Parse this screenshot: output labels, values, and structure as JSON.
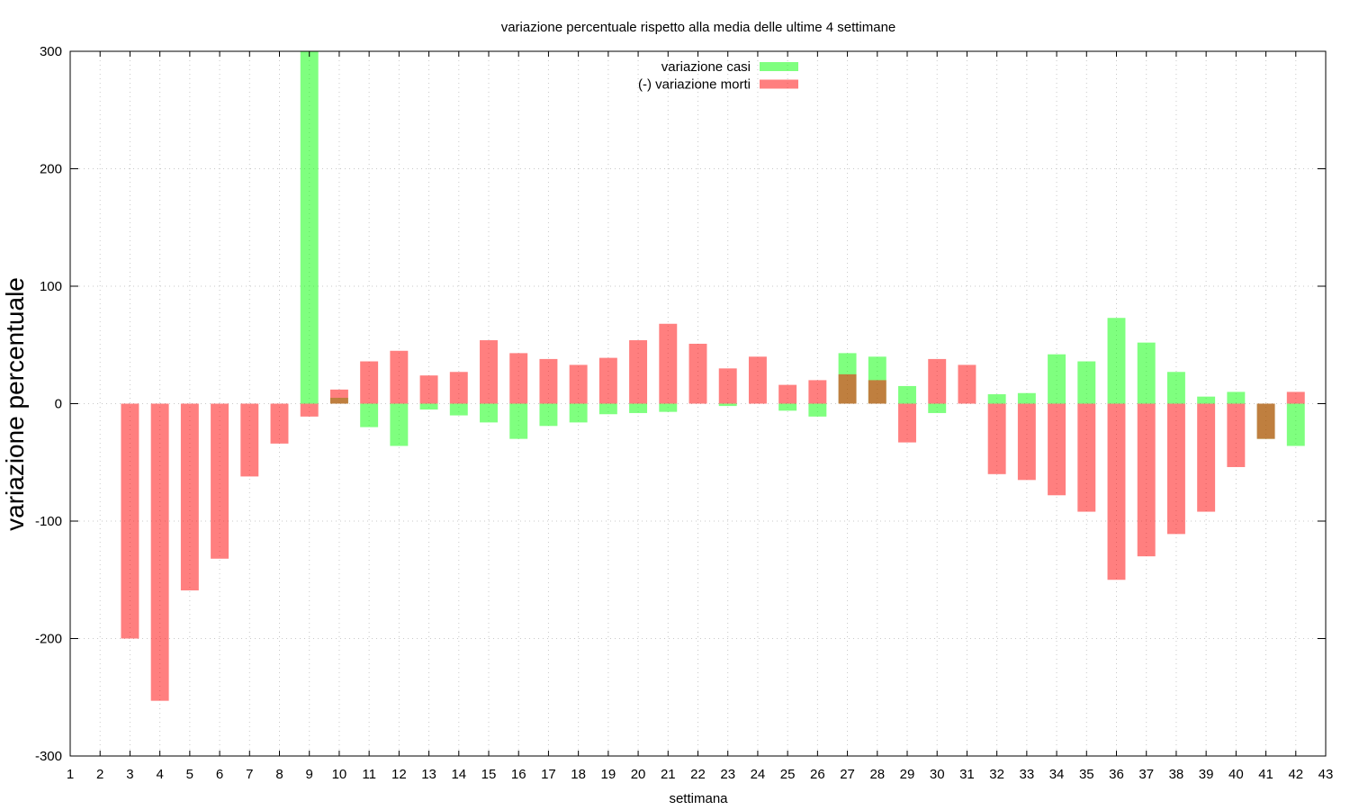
{
  "chart_data": {
    "type": "bar",
    "title": "variazione percentuale rispetto alla media delle ultime 4 settimane",
    "xlabel": "settimana",
    "ylabel": "variazione percentuale",
    "xlim": [
      1,
      43
    ],
    "ylim": [
      -300,
      300
    ],
    "xticks": [
      "1",
      "2",
      "3",
      "4",
      "5",
      "6",
      "7",
      "8",
      "9",
      "10",
      "11",
      "12",
      "13",
      "14",
      "15",
      "16",
      "17",
      "18",
      "19",
      "20",
      "21",
      "22",
      "23",
      "24",
      "25",
      "26",
      "27",
      "28",
      "29",
      "30",
      "31",
      "32",
      "33",
      "34",
      "35",
      "36",
      "37",
      "38",
      "39",
      "40",
      "41",
      "42",
      "43"
    ],
    "yticks": [
      "300",
      "200",
      "100",
      "0",
      "-100",
      "-200",
      "-300"
    ],
    "grid": true,
    "legend_position": "top-center",
    "categories": [
      3,
      4,
      5,
      6,
      7,
      8,
      9,
      10,
      11,
      12,
      13,
      14,
      15,
      16,
      17,
      18,
      19,
      20,
      21,
      22,
      23,
      24,
      25,
      26,
      27,
      28,
      29,
      30,
      31,
      32,
      33,
      34,
      35,
      36,
      37,
      38,
      39,
      40,
      41,
      42
    ],
    "series": [
      {
        "name": "variazione casi",
        "color": "#00ff00",
        "values": [
          0,
          0,
          0,
          0,
          0,
          0,
          300,
          5,
          -20,
          -36,
          -5,
          -10,
          -16,
          -30,
          -19,
          -16,
          -9,
          -8,
          -7,
          0,
          -2,
          0,
          -6,
          -11,
          43,
          40,
          15,
          -8,
          0,
          8,
          9,
          42,
          36,
          73,
          52,
          27,
          6,
          10,
          -30,
          -36
        ]
      },
      {
        "name": "(-) variazione morti",
        "color": "#ff0000",
        "values": [
          -200,
          -253,
          -159,
          -132,
          -62,
          -34,
          -11,
          12,
          36,
          45,
          24,
          27,
          54,
          43,
          38,
          33,
          39,
          54,
          68,
          51,
          30,
          40,
          16,
          20,
          25,
          20,
          -33,
          38,
          33,
          -60,
          -65,
          -78,
          -92,
          -150,
          -130,
          -111,
          -92,
          -54,
          -30,
          10
        ]
      }
    ],
    "bar_opacity": 0.5,
    "overlap_color": "#c08040"
  }
}
